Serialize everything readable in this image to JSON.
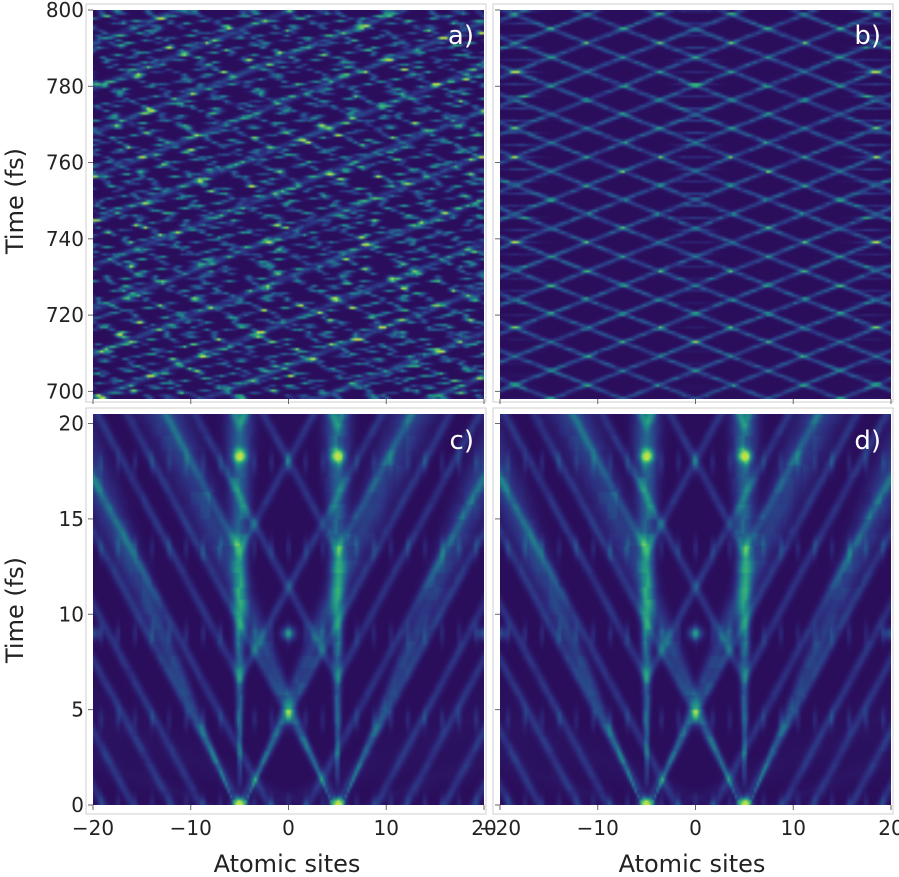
{
  "colors": {
    "background": "#2a0e5c",
    "colormap": [
      "#2a0e5c",
      "#2e2d7f",
      "#26578e",
      "#1f8c8a",
      "#3bbb76",
      "#b9e34b"
    ]
  },
  "chart_data": [
    {
      "type": "heatmap",
      "panel_label": "a)",
      "xlim": [
        -20,
        20
      ],
      "ylim": [
        698,
        800
      ],
      "xticks": [
        "−20",
        "−10",
        "0",
        "10",
        "20"
      ],
      "xtick_values": [
        -20,
        -10,
        0,
        10,
        20
      ],
      "yticks": [
        "700",
        "720",
        "740",
        "760",
        "780",
        "800"
      ],
      "ytick_values": [
        700,
        720,
        740,
        760,
        780,
        800
      ],
      "ylabel": "Time (fs)",
      "xlabel": "",
      "pattern": "irregular diagonal streaks (asymmetric)"
    },
    {
      "type": "heatmap",
      "panel_label": "b)",
      "xlim": [
        -20,
        20
      ],
      "ylim": [
        698,
        800
      ],
      "xticks": [
        "−20",
        "−10",
        "0",
        "10",
        "20"
      ],
      "xtick_values": [
        -20,
        -10,
        0,
        10,
        20
      ],
      "yticks": [
        "700",
        "720",
        "740",
        "760",
        "780",
        "800"
      ],
      "ytick_values": [
        700,
        720,
        740,
        760,
        780,
        800
      ],
      "ylabel": "",
      "xlabel": "",
      "pattern": "symmetric X-shaped lattice about site 0"
    },
    {
      "type": "heatmap",
      "panel_label": "c)",
      "xlim": [
        -20,
        20
      ],
      "ylim": [
        0,
        20.5
      ],
      "xticks": [
        "−20",
        "−10",
        "0",
        "10",
        "20"
      ],
      "xtick_values": [
        -20,
        -10,
        0,
        10,
        20
      ],
      "yticks": [
        "0",
        "5",
        "10",
        "15",
        "20"
      ],
      "ytick_values": [
        0,
        5,
        10,
        15,
        20
      ],
      "ylabel": "Time (fs)",
      "xlabel": "Atomic sites",
      "bright_spots": [
        [
          -5,
          0
        ],
        [
          5,
          0
        ],
        [
          0,
          9
        ],
        [
          -5,
          18.3
        ],
        [
          5,
          18.3
        ]
      ],
      "pattern": "light-cone fans from sites -5 and 5"
    },
    {
      "type": "heatmap",
      "panel_label": "d)",
      "xlim": [
        -20,
        20
      ],
      "ylim": [
        0,
        20.5
      ],
      "xticks": [
        "−20",
        "−10",
        "0",
        "10",
        "20"
      ],
      "xtick_values": [
        -20,
        -10,
        0,
        10,
        20
      ],
      "yticks": [
        "0",
        "5",
        "10",
        "15",
        "20"
      ],
      "ytick_values": [
        0,
        5,
        10,
        15,
        20
      ],
      "ylabel": "",
      "xlabel": "Atomic sites",
      "bright_spots": [
        [
          -5,
          0
        ],
        [
          5,
          0
        ],
        [
          0,
          9
        ],
        [
          -5,
          18.3
        ],
        [
          5,
          18.3
        ]
      ],
      "pattern": "light-cone fans from sites -5 and 5"
    }
  ]
}
